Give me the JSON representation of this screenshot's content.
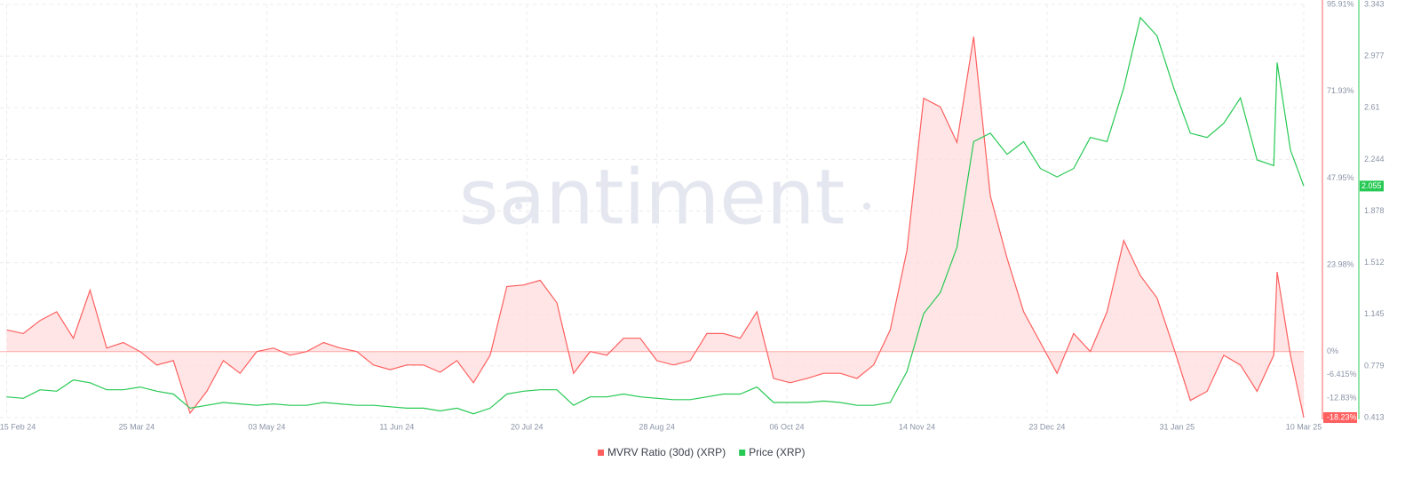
{
  "chart_data": {
    "type": "line",
    "watermark": "santiment",
    "x": [
      "2024-02-15",
      "2024-02-20",
      "2024-02-25",
      "2024-03-01",
      "2024-03-06",
      "2024-03-11",
      "2024-03-16",
      "2024-03-21",
      "2024-03-26",
      "2024-03-31",
      "2024-04-05",
      "2024-04-10",
      "2024-04-15",
      "2024-04-20",
      "2024-04-25",
      "2024-04-30",
      "2024-05-05",
      "2024-05-10",
      "2024-05-15",
      "2024-05-20",
      "2024-05-25",
      "2024-05-30",
      "2024-06-04",
      "2024-06-09",
      "2024-06-14",
      "2024-06-19",
      "2024-06-24",
      "2024-06-29",
      "2024-07-04",
      "2024-07-09",
      "2024-07-14",
      "2024-07-19",
      "2024-07-24",
      "2024-07-29",
      "2024-08-03",
      "2024-08-08",
      "2024-08-13",
      "2024-08-18",
      "2024-08-23",
      "2024-08-28",
      "2024-09-02",
      "2024-09-07",
      "2024-09-12",
      "2024-09-17",
      "2024-09-22",
      "2024-09-27",
      "2024-10-02",
      "2024-10-07",
      "2024-10-12",
      "2024-10-17",
      "2024-10-22",
      "2024-10-27",
      "2024-11-01",
      "2024-11-06",
      "2024-11-11",
      "2024-11-16",
      "2024-11-21",
      "2024-11-26",
      "2024-12-01",
      "2024-12-06",
      "2024-12-11",
      "2024-12-16",
      "2024-12-21",
      "2024-12-26",
      "2024-12-31",
      "2025-01-05",
      "2025-01-10",
      "2025-01-15",
      "2025-01-20",
      "2025-01-25",
      "2025-01-30",
      "2025-02-04",
      "2025-02-09",
      "2025-02-14",
      "2025-02-19",
      "2025-02-24",
      "2025-03-01",
      "2025-03-02",
      "2025-03-06",
      "2025-03-10"
    ],
    "series": [
      {
        "name": "MVRV Ratio (30d) (XRP)",
        "color": "#ff5f5f",
        "fill": "#ffdcdc",
        "axis": "y",
        "values": [
          6,
          5,
          8.6,
          11,
          3.7,
          17,
          1,
          2.5,
          0,
          -3.7,
          -2.5,
          -17,
          -11,
          -2.5,
          -6,
          0,
          1,
          -1,
          0,
          2.5,
          1,
          0,
          -3.7,
          -5,
          -3.7,
          -3.7,
          -5.7,
          -2.5,
          -8.6,
          -1,
          18,
          18.4,
          19.7,
          13.5,
          -6,
          0,
          -1,
          3.7,
          3.7,
          -2.5,
          -3.7,
          -2.5,
          5,
          5,
          3.7,
          11,
          -7.4,
          -8.6,
          -7.4,
          -6,
          -6,
          -7.4,
          -3.7,
          6,
          28,
          70,
          67.6,
          57.8,
          87,
          43,
          25.8,
          11,
          2.5,
          -6,
          5,
          0,
          11,
          30.7,
          21,
          14.8,
          1,
          -13.5,
          -11,
          -1,
          -3.7,
          -11,
          -1,
          22,
          -1,
          -18.23
        ]
      },
      {
        "name": "Price (XRP)",
        "color": "#26c953",
        "axis": "y2",
        "values": [
          0.56,
          0.55,
          0.61,
          0.6,
          0.68,
          0.66,
          0.61,
          0.61,
          0.63,
          0.6,
          0.58,
          0.48,
          0.5,
          0.52,
          0.51,
          0.5,
          0.51,
          0.5,
          0.5,
          0.52,
          0.51,
          0.5,
          0.5,
          0.49,
          0.48,
          0.48,
          0.46,
          0.48,
          0.44,
          0.48,
          0.58,
          0.6,
          0.61,
          0.61,
          0.5,
          0.56,
          0.56,
          0.58,
          0.56,
          0.55,
          0.54,
          0.54,
          0.56,
          0.58,
          0.58,
          0.63,
          0.52,
          0.52,
          0.52,
          0.53,
          0.52,
          0.5,
          0.5,
          0.52,
          0.74,
          1.15,
          1.3,
          1.62,
          2.37,
          2.43,
          2.28,
          2.37,
          2.18,
          2.12,
          2.18,
          2.4,
          2.37,
          2.75,
          3.25,
          3.12,
          2.75,
          2.43,
          2.4,
          2.5,
          2.68,
          2.24,
          2.2,
          2.93,
          2.31,
          2.055
        ]
      }
    ],
    "xlim": [
      "2024-02-13",
      "2025-03-10"
    ],
    "xticks": [
      {
        "value": "2024-02-15",
        "label": "15 Feb 24"
      },
      {
        "value": "2024-03-25",
        "label": "25 Mar 24"
      },
      {
        "value": "2024-05-03",
        "label": "03 May 24"
      },
      {
        "value": "2024-06-11",
        "label": "11 Jun 24"
      },
      {
        "value": "2024-07-20",
        "label": "20 Jul 24"
      },
      {
        "value": "2024-08-28",
        "label": "28 Aug 24"
      },
      {
        "value": "2024-10-06",
        "label": "06 Oct 24"
      },
      {
        "value": "2024-11-14",
        "label": "14 Nov 24"
      },
      {
        "value": "2024-12-23",
        "label": "23 Dec 24"
      },
      {
        "value": "2025-01-31",
        "label": "31 Jan 25"
      },
      {
        "value": "2025-03-10",
        "label": "10 Mar 25"
      }
    ],
    "ylim": [
      -18.23,
      95.91
    ],
    "yticks": [
      {
        "value": 95.91,
        "label": "95.91%"
      },
      {
        "value": 71.93,
        "label": "71.93%"
      },
      {
        "value": 47.95,
        "label": "47.95%"
      },
      {
        "value": 23.98,
        "label": "23.98%"
      },
      {
        "value": 0,
        "label": "0%"
      },
      {
        "value": -6.415,
        "label": "-6.415%"
      },
      {
        "value": -12.83,
        "label": "-12.83%"
      },
      {
        "value": -18.23,
        "label": "-18.23%"
      }
    ],
    "y2lim": [
      0.413,
      3.343
    ],
    "y2ticks": [
      0.413,
      0.779,
      1.145,
      1.512,
      1.878,
      2.244,
      2.61,
      2.977,
      3.343
    ],
    "grid": true
  }
}
